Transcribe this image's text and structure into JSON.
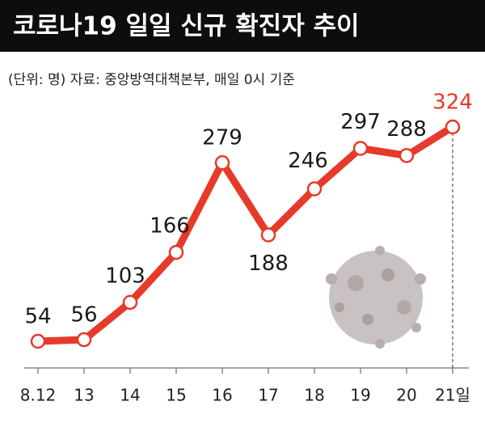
{
  "chart_data": {
    "type": "line",
    "title": "코로나19 일일 신규 확진자 추이",
    "subtitle": "(단위: 명)  자료: 중앙방역대책본부, 매일 0시 기준",
    "categories": [
      "8.12",
      "13",
      "14",
      "15",
      "16",
      "17",
      "18",
      "19",
      "20",
      "21일"
    ],
    "values": [
      54,
      56,
      103,
      166,
      279,
      188,
      246,
      297,
      288,
      324
    ],
    "color": "#e63a2a",
    "highlight_color": "#e63a2a"
  }
}
